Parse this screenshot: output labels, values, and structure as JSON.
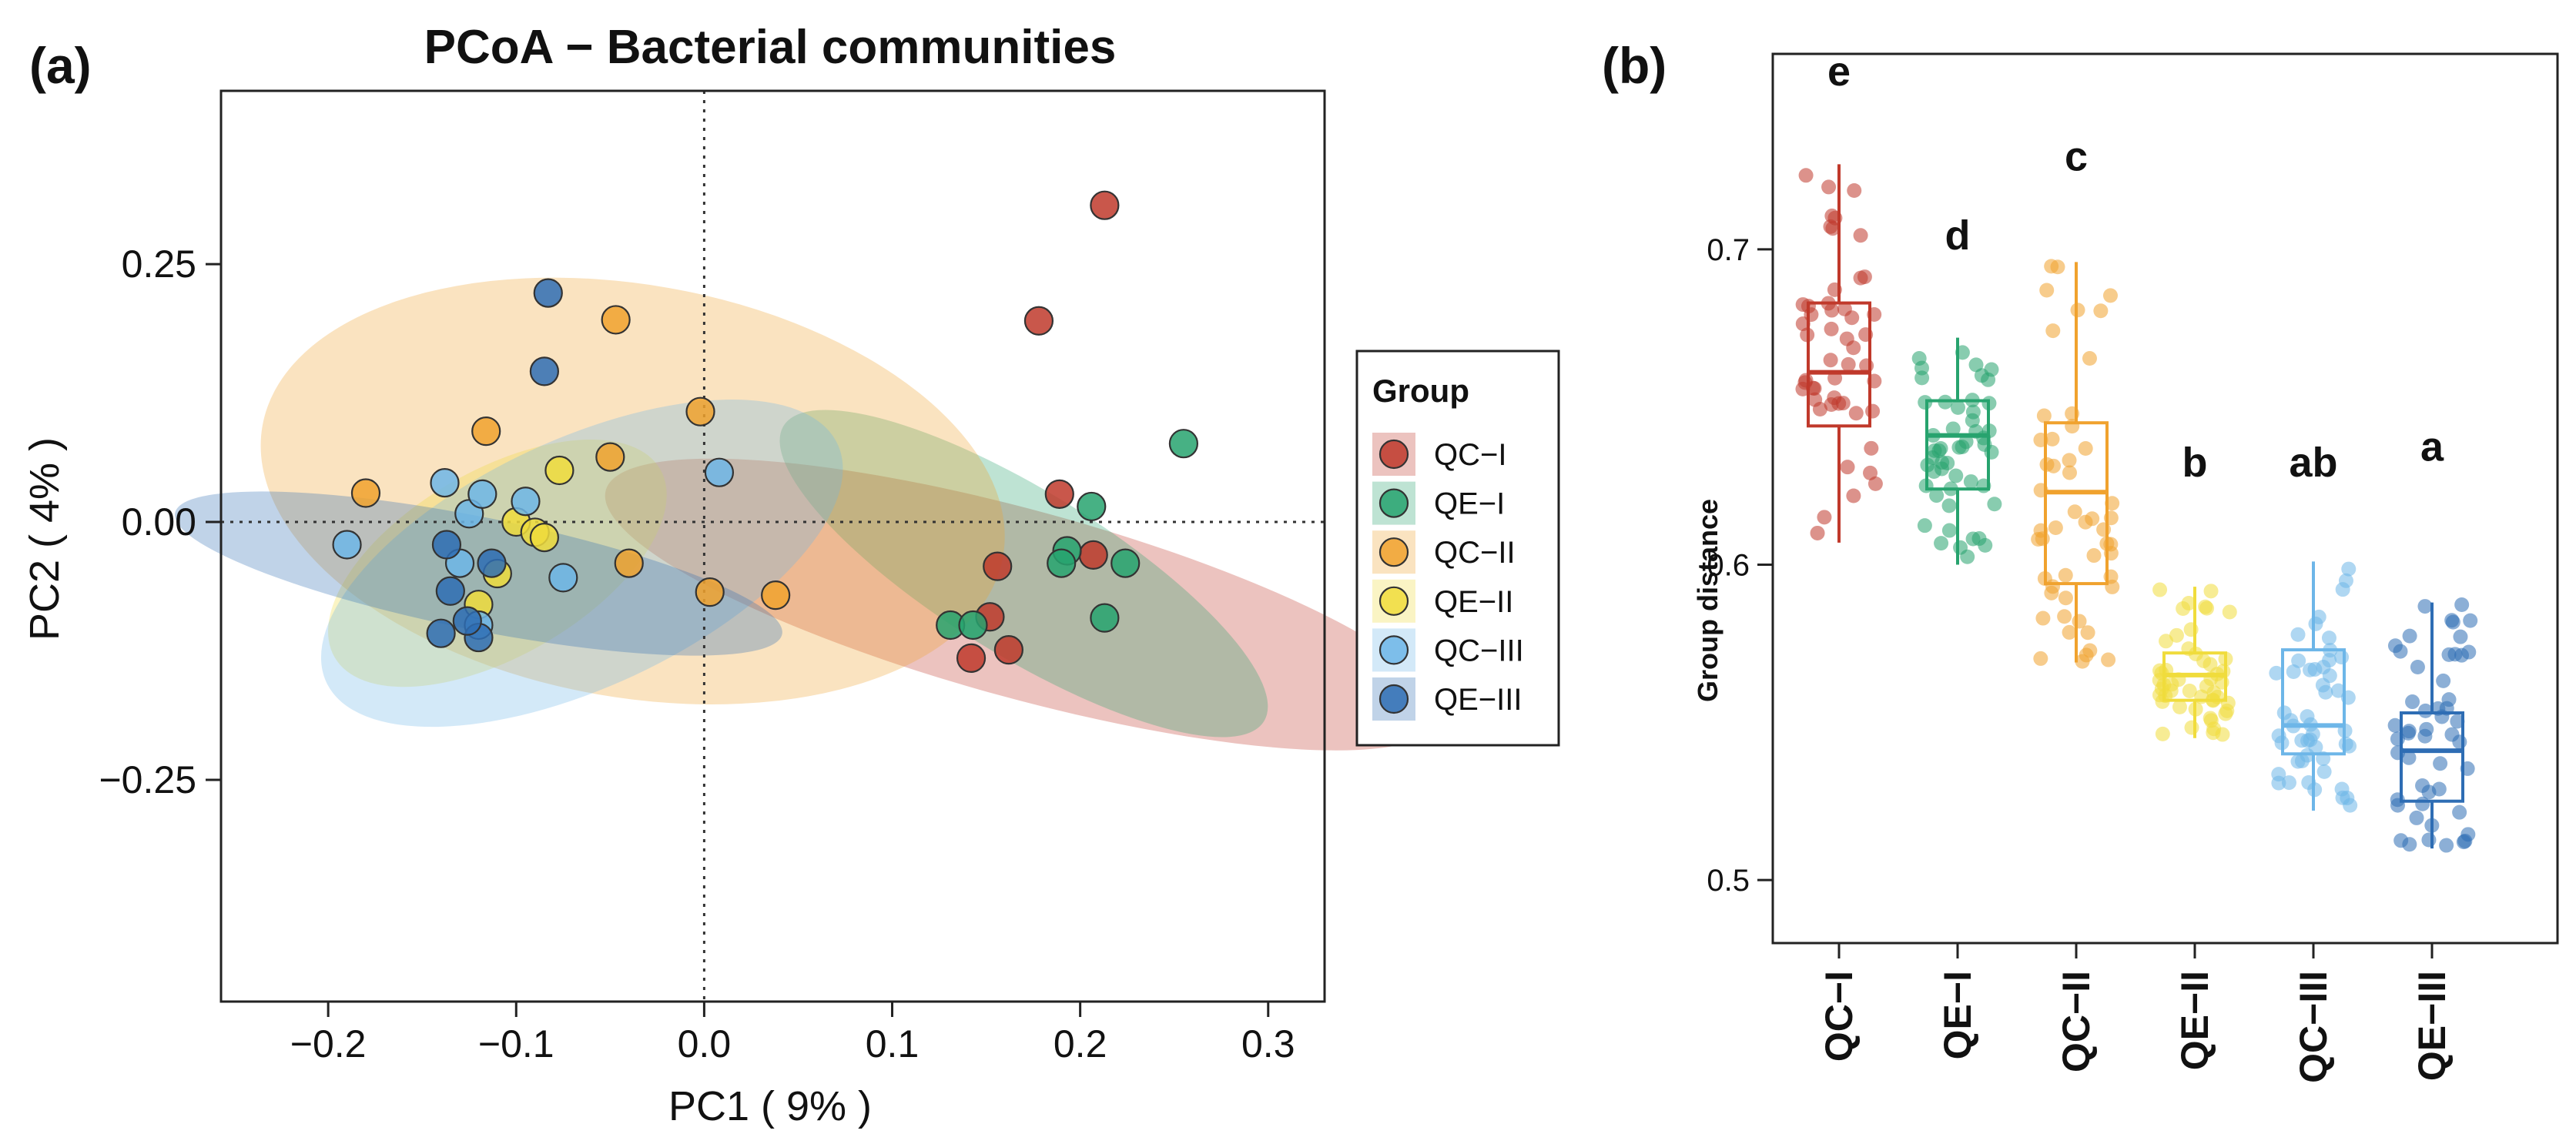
{
  "panel_a_label": "(a)",
  "panel_b_label": "(b)",
  "colors": {
    "QC-I": "#c0392b",
    "QE-I": "#27a36e",
    "QC-II": "#f0a22e",
    "QE-II": "#f0dc3c",
    "QC-III": "#6db6e8",
    "QE-III": "#2e6db4"
  },
  "chart_data": [
    {
      "type": "scatter",
      "title": "PCoA − Bacterial communities",
      "xlabel": "PC1 ( 9% )",
      "ylabel": "PC2 ( 4% )",
      "xlim": [
        -0.257,
        0.33
      ],
      "ylim": [
        -0.465,
        0.418
      ],
      "xticks": [
        -0.2,
        -0.1,
        0.0,
        0.1,
        0.2,
        0.3
      ],
      "xtick_labels": [
        "−0.2",
        "−0.1",
        "0.0",
        "0.1",
        "0.2",
        "0.3"
      ],
      "yticks": [
        -0.25,
        0.0,
        0.25
      ],
      "ytick_labels": [
        "−0.25",
        "0.00",
        "0.25"
      ],
      "reference_lines": {
        "x": 0,
        "y": 0
      },
      "legend": {
        "title": "Group",
        "position": "right",
        "entries": [
          "QC−I",
          "QE−I",
          "QC−II",
          "QE−II",
          "QC−III",
          "QE−III"
        ]
      },
      "series": [
        {
          "name": "QC-I",
          "points": [
            [
              0.213,
              0.307
            ],
            [
              0.178,
              0.195
            ],
            [
              0.189,
              0.027
            ],
            [
              0.207,
              -0.032
            ],
            [
              0.156,
              -0.043
            ],
            [
              0.152,
              -0.092
            ],
            [
              0.162,
              -0.124
            ],
            [
              0.142,
              -0.132
            ]
          ],
          "ellipse": {
            "center": [
              0.17,
              -0.08
            ],
            "semi_axes": [
              0.05,
              0.42
            ],
            "angle_deg": 74.7
          }
        },
        {
          "name": "QE-I",
          "points": [
            [
              0.255,
              0.076
            ],
            [
              0.206,
              0.015
            ],
            [
              0.224,
              -0.04
            ],
            [
              0.193,
              -0.028
            ],
            [
              0.19,
              -0.04
            ],
            [
              0.213,
              -0.093
            ],
            [
              0.131,
              -0.1
            ],
            [
              0.143,
              -0.1
            ]
          ],
          "ellipse": {
            "center": [
              0.17,
              -0.05
            ],
            "semi_axes": [
              0.15,
              0.08
            ],
            "angle_deg": -31.6
          }
        },
        {
          "name": "QC-II",
          "points": [
            [
              -0.18,
              0.028
            ],
            [
              -0.047,
              0.196
            ],
            [
              -0.002,
              0.107
            ],
            [
              -0.05,
              0.063
            ],
            [
              -0.116,
              0.088
            ],
            [
              -0.04,
              -0.04
            ],
            [
              0.003,
              -0.068
            ],
            [
              0.038,
              -0.071
            ]
          ],
          "ellipse": {
            "center": [
              -0.038,
              0.03
            ],
            "semi_axes": [
              0.2,
              0.2
            ],
            "angle_deg": -10.0
          }
        },
        {
          "name": "QE-II",
          "points": [
            [
              -0.077,
              0.05
            ],
            [
              -0.1,
              0.0
            ],
            [
              -0.09,
              -0.01
            ],
            [
              -0.12,
              -0.08
            ],
            [
              -0.085,
              -0.015
            ],
            [
              -0.11,
              -0.05
            ]
          ],
          "ellipse": {
            "center": [
              -0.11,
              -0.04
            ],
            "semi_axes": [
              0.1,
              0.09
            ],
            "angle_deg": 30.0
          }
        },
        {
          "name": "QC-III",
          "points": [
            [
              -0.19,
              -0.022
            ],
            [
              0.008,
              0.048
            ],
            [
              -0.075,
              -0.054
            ],
            [
              -0.138,
              0.038
            ],
            [
              -0.125,
              0.008
            ],
            [
              -0.118,
              0.027
            ],
            [
              -0.095,
              0.02
            ],
            [
              -0.13,
              -0.04
            ],
            [
              -0.12,
              -0.1
            ]
          ],
          "ellipse": {
            "center": [
              -0.065,
              -0.04
            ],
            "semi_axes": [
              0.15,
              0.12
            ],
            "angle_deg": 25.0
          }
        },
        {
          "name": "QE-III",
          "points": [
            [
              -0.083,
              0.222
            ],
            [
              -0.085,
              0.146
            ],
            [
              -0.137,
              -0.022
            ],
            [
              -0.113,
              -0.04
            ],
            [
              -0.135,
              -0.067
            ],
            [
              -0.12,
              -0.112
            ],
            [
              -0.14,
              -0.108
            ],
            [
              -0.126,
              -0.096
            ]
          ],
          "ellipse": {
            "center": [
              -0.12,
              -0.05
            ],
            "semi_axes": [
              0.03,
              0.3
            ],
            "angle_deg": 78.7
          }
        }
      ]
    },
    {
      "type": "box",
      "title": "",
      "xlabel": "",
      "ylabel": "Group distance",
      "ylim": [
        0.48,
        0.762
      ],
      "yticks": [
        0.5,
        0.6,
        0.7
      ],
      "ytick_labels": [
        "0.5",
        "0.6",
        "0.7"
      ],
      "categories": [
        "QC−I",
        "QE−I",
        "QC−II",
        "QE−II",
        "QC−III",
        "QE−III"
      ],
      "series": [
        {
          "name": "QC-I",
          "min": 0.607,
          "q1": 0.644,
          "median": 0.661,
          "q3": 0.683,
          "max": 0.727,
          "letter": "e",
          "letter_y": 0.752
        },
        {
          "name": "QE-I",
          "min": 0.6,
          "q1": 0.624,
          "median": 0.641,
          "q3": 0.652,
          "max": 0.672,
          "letter": "d",
          "letter_y": 0.7
        },
        {
          "name": "QC-II",
          "min": 0.569,
          "q1": 0.594,
          "median": 0.623,
          "q3": 0.645,
          "max": 0.696,
          "letter": "c",
          "letter_y": 0.725
        },
        {
          "name": "QE-II",
          "min": 0.545,
          "q1": 0.557,
          "median": 0.565,
          "q3": 0.572,
          "max": 0.593,
          "letter": "b",
          "letter_y": 0.628
        },
        {
          "name": "QC-III",
          "min": 0.522,
          "q1": 0.54,
          "median": 0.549,
          "q3": 0.573,
          "max": 0.601,
          "letter": "ab",
          "letter_y": 0.628
        },
        {
          "name": "QE-III",
          "min": 0.51,
          "q1": 0.525,
          "median": 0.541,
          "q3": 0.553,
          "max": 0.588,
          "letter": "a",
          "letter_y": 0.633
        }
      ]
    }
  ]
}
